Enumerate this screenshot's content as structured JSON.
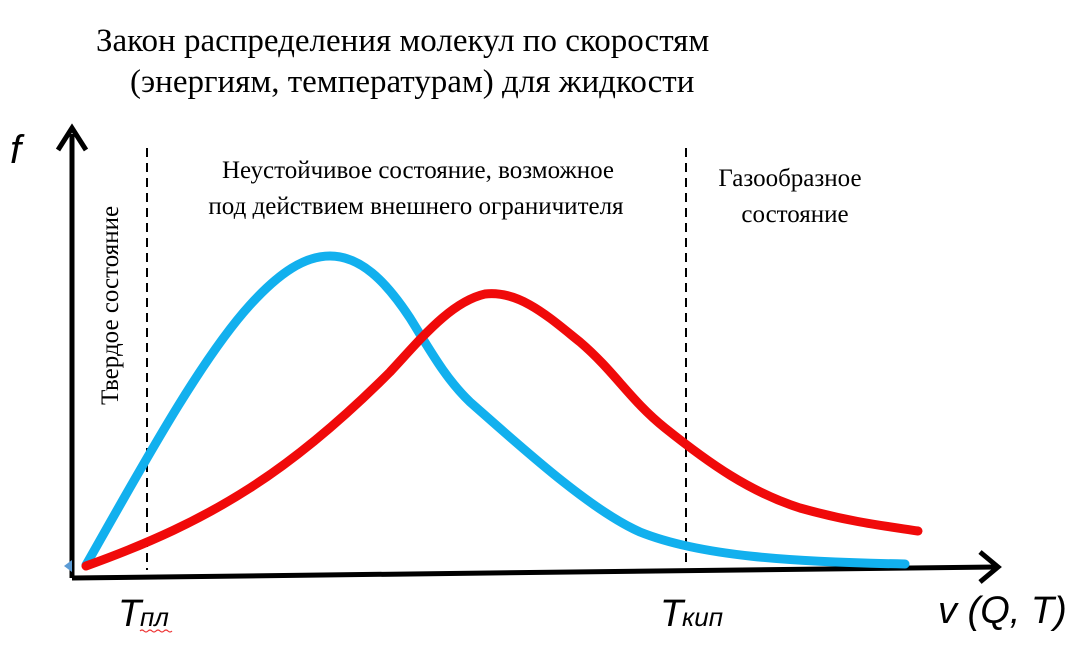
{
  "title": {
    "line1": "Закон распределения молекул по скоростям",
    "line2": "(энергиям, температурам) для жидкости"
  },
  "axes": {
    "y_label": "f",
    "x_label": "v (Q, T)"
  },
  "markers": {
    "melting": {
      "symbol": "T",
      "subscript": "пл"
    },
    "boiling": {
      "symbol": "T",
      "subscript": "кип"
    }
  },
  "regions": {
    "solid": "Твердое состояние",
    "unstable": {
      "line1": "Неустойчивое состояние, возможное",
      "line2": "под действием внешнего ограничителя"
    },
    "gas": {
      "line1": "Газообразное",
      "line2": "состояние"
    }
  },
  "curves": {
    "blue": {
      "color": "#12b0ee"
    },
    "red": {
      "color": "#f00a0a"
    }
  }
}
